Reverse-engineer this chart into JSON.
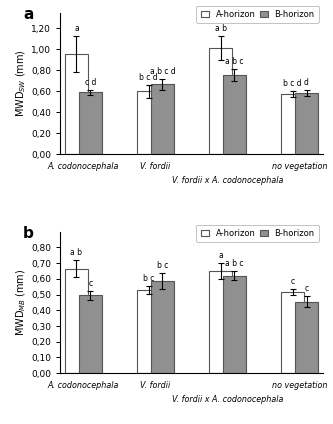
{
  "panel_a": {
    "title_label": "a",
    "ylabel": "MWD$_{SW}$ (mm)",
    "ylim": [
      0,
      1.35
    ],
    "yticks": [
      0.0,
      0.2,
      0.4,
      0.6,
      0.8,
      1.0,
      1.2
    ],
    "ytick_labels": [
      "0,00",
      "0,20",
      "0,40",
      "0,60",
      "0,80",
      "1,00",
      "1,20"
    ],
    "a_values": [
      0.955,
      0.6,
      1.01,
      0.575
    ],
    "a_errors": [
      0.175,
      0.06,
      0.115,
      0.03
    ],
    "b_values": [
      0.59,
      0.665,
      0.755,
      0.585
    ],
    "b_errors": [
      0.025,
      0.055,
      0.055,
      0.03
    ],
    "a_letters": [
      "a",
      "b c d",
      "a b",
      "b c d"
    ],
    "b_letters": [
      "c d",
      "a b c d",
      "a b c",
      "d"
    ],
    "bar_width": 0.7,
    "pair_centers": [
      0.5,
      2.5,
      4.5,
      6.5
    ],
    "xlim": [
      -0.15,
      7.15
    ]
  },
  "panel_b": {
    "title_label": "b",
    "ylabel": "MWD$_{MB}$ (mm)",
    "ylim": [
      0,
      0.9
    ],
    "yticks": [
      0.0,
      0.1,
      0.2,
      0.3,
      0.4,
      0.5,
      0.6,
      0.7,
      0.8
    ],
    "ytick_labels": [
      "0,00",
      "0,10",
      "0,20",
      "0,30",
      "0,40",
      "0,50",
      "0,60",
      "0,70",
      "0,80"
    ],
    "a_values": [
      0.665,
      0.53,
      0.65,
      0.515
    ],
    "a_errors": [
      0.055,
      0.025,
      0.05,
      0.02
    ],
    "b_values": [
      0.495,
      0.585,
      0.62,
      0.455
    ],
    "b_errors": [
      0.03,
      0.05,
      0.03,
      0.035
    ],
    "a_letters": [
      "a b",
      "b c",
      "a",
      "c"
    ],
    "b_letters": [
      "c",
      "b c",
      "a b c",
      "c"
    ],
    "bar_width": 0.7,
    "pair_centers": [
      0.5,
      2.5,
      4.5,
      6.5
    ],
    "xlim": [
      -0.15,
      7.15
    ]
  },
  "colors": {
    "A_horizon": "#ffffff",
    "B_horizon": "#909090",
    "edge": "#555555"
  },
  "legend": {
    "A_label": "A-horizon",
    "B_label": "B-horizon"
  },
  "bottom_labels": {
    "main": [
      "A. codonocephala",
      "V. fordii",
      "",
      "no vegetation"
    ],
    "sub": [
      "",
      "",
      "V. fordii x A. codonocephala",
      ""
    ]
  }
}
